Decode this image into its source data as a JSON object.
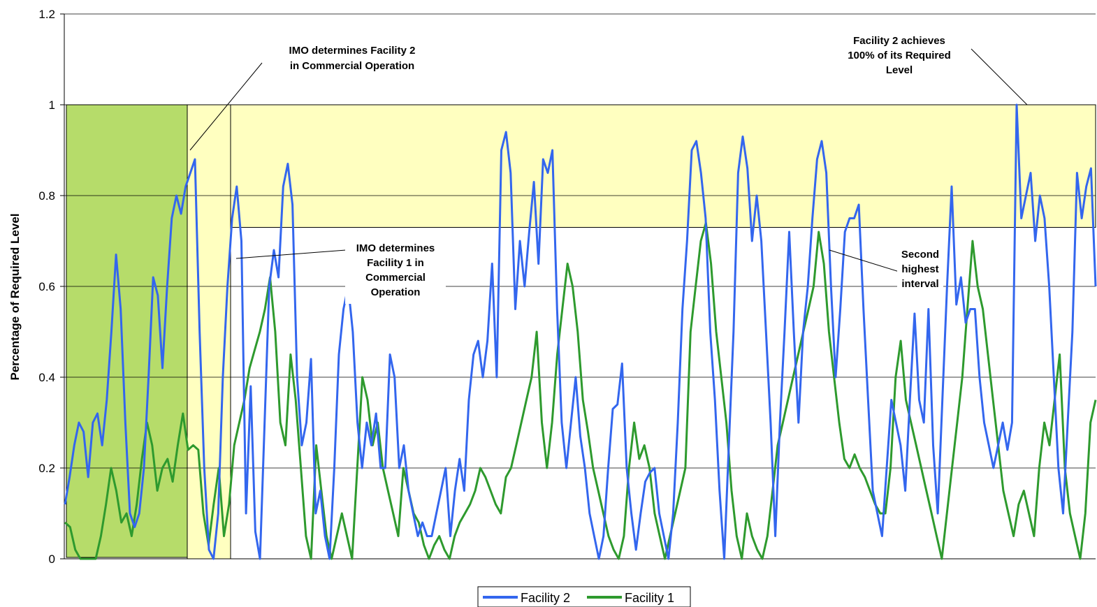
{
  "chart_data": {
    "type": "line",
    "title": "",
    "xlabel": "",
    "ylabel": "Percentage of Required Level",
    "ylim": [
      0,
      1.2
    ],
    "yticks": [
      "0",
      "0.2",
      "0.4",
      "0.6",
      "0.8",
      "1",
      "1.2"
    ],
    "grid": "horizontal",
    "legend_position": "bottom-center",
    "colors": {
      "facility2": "#3366ee",
      "facility1": "#2e9a2e",
      "yellow_band": "#ffffc0",
      "green_band": "#b6dc6a"
    },
    "shaded_regions": [
      {
        "name": "initial-green-region",
        "y_range": [
          0,
          1
        ]
      },
      {
        "name": "initial-yellow-region",
        "y_range": [
          0,
          1
        ]
      },
      {
        "name": "second-highest-band",
        "y_range": [
          0.73,
          1
        ]
      }
    ],
    "series": [
      {
        "name": "Facility 2",
        "color": "#3366ee",
        "values": [
          0.12,
          0.18,
          0.25,
          0.3,
          0.28,
          0.18,
          0.3,
          0.32,
          0.25,
          0.35,
          0.5,
          0.67,
          0.55,
          0.3,
          0.1,
          0.07,
          0.1,
          0.2,
          0.4,
          0.62,
          0.58,
          0.42,
          0.6,
          0.75,
          0.8,
          0.76,
          0.82,
          0.85,
          0.88,
          0.5,
          0.2,
          0.02,
          0,
          0.1,
          0.4,
          0.6,
          0.75,
          0.82,
          0.7,
          0.1,
          0.38,
          0.06,
          0,
          0.3,
          0.6,
          0.68,
          0.62,
          0.82,
          0.87,
          0.78,
          0.4,
          0.25,
          0.3,
          0.44,
          0.1,
          0.15,
          0.05,
          0,
          0.2,
          0.45,
          0.55,
          0.6,
          0.5,
          0.3,
          0.2,
          0.3,
          0.25,
          0.32,
          0.2,
          0.2,
          0.45,
          0.4,
          0.2,
          0.25,
          0.15,
          0.1,
          0.05,
          0.08,
          0.05,
          0.05,
          0.1,
          0.15,
          0.2,
          0.05,
          0.15,
          0.22,
          0.15,
          0.35,
          0.45,
          0.48,
          0.4,
          0.48,
          0.65,
          0.4,
          0.9,
          0.94,
          0.85,
          0.55,
          0.7,
          0.6,
          0.72,
          0.83,
          0.65,
          0.88,
          0.85,
          0.9,
          0.55,
          0.3,
          0.2,
          0.3,
          0.4,
          0.27,
          0.2,
          0.1,
          0.05,
          0,
          0.05,
          0.2,
          0.33,
          0.34,
          0.43,
          0.2,
          0.1,
          0.02,
          0.1,
          0.17,
          0.19,
          0.2,
          0.1,
          0.05,
          0,
          0.1,
          0.3,
          0.55,
          0.7,
          0.9,
          0.92,
          0.85,
          0.75,
          0.5,
          0.35,
          0.15,
          0,
          0.25,
          0.5,
          0.85,
          0.93,
          0.86,
          0.7,
          0.8,
          0.7,
          0.5,
          0.3,
          0.05,
          0.3,
          0.5,
          0.72,
          0.5,
          0.3,
          0.5,
          0.6,
          0.75,
          0.88,
          0.92,
          0.85,
          0.6,
          0.4,
          0.55,
          0.72,
          0.75,
          0.75,
          0.78,
          0.55,
          0.35,
          0.15,
          0.1,
          0.05,
          0.2,
          0.35,
          0.3,
          0.25,
          0.15,
          0.35,
          0.54,
          0.35,
          0.3,
          0.55,
          0.25,
          0.1,
          0.35,
          0.6,
          0.82,
          0.56,
          0.62,
          0.52,
          0.55,
          0.55,
          0.4,
          0.3,
          0.25,
          0.2,
          0.25,
          0.3,
          0.24,
          0.3,
          1,
          0.75,
          0.8,
          0.85,
          0.7,
          0.8,
          0.75,
          0.6,
          0.4,
          0.2,
          0.1,
          0.3,
          0.5,
          0.85,
          0.75,
          0.82,
          0.86,
          0.6
        ]
      },
      {
        "name": "Facility 1",
        "color": "#2e9a2e",
        "values": [
          0.08,
          0.07,
          0.02,
          0,
          0,
          0,
          0,
          0.05,
          0.12,
          0.2,
          0.15,
          0.08,
          0.1,
          0.05,
          0.12,
          0.22,
          0.3,
          0.25,
          0.15,
          0.2,
          0.22,
          0.17,
          0.25,
          0.32,
          0.24,
          0.25,
          0.24,
          0.1,
          0.03,
          0.12,
          0.2,
          0.05,
          0.12,
          0.25,
          0.3,
          0.35,
          0.42,
          0.46,
          0.5,
          0.55,
          0.62,
          0.5,
          0.3,
          0.25,
          0.45,
          0.35,
          0.2,
          0.05,
          0,
          0.25,
          0.15,
          0.05,
          0,
          0.05,
          0.1,
          0.05,
          0,
          0.2,
          0.4,
          0.35,
          0.25,
          0.3,
          0.2,
          0.15,
          0.1,
          0.05,
          0.2,
          0.15,
          0.1,
          0.08,
          0.03,
          0,
          0.03,
          0.05,
          0.02,
          0,
          0.05,
          0.08,
          0.1,
          0.12,
          0.15,
          0.2,
          0.18,
          0.15,
          0.12,
          0.1,
          0.18,
          0.2,
          0.25,
          0.3,
          0.35,
          0.4,
          0.5,
          0.3,
          0.2,
          0.3,
          0.45,
          0.55,
          0.65,
          0.6,
          0.5,
          0.35,
          0.28,
          0.2,
          0.15,
          0.1,
          0.05,
          0.02,
          0,
          0.05,
          0.2,
          0.3,
          0.22,
          0.25,
          0.2,
          0.1,
          0.05,
          0,
          0.05,
          0.1,
          0.15,
          0.2,
          0.5,
          0.6,
          0.7,
          0.74,
          0.65,
          0.5,
          0.4,
          0.3,
          0.15,
          0.05,
          0,
          0.1,
          0.05,
          0.02,
          0,
          0.05,
          0.15,
          0.25,
          0.3,
          0.35,
          0.4,
          0.45,
          0.5,
          0.55,
          0.6,
          0.72,
          0.65,
          0.5,
          0.4,
          0.3,
          0.22,
          0.2,
          0.23,
          0.2,
          0.18,
          0.15,
          0.12,
          0.1,
          0.1,
          0.2,
          0.4,
          0.48,
          0.35,
          0.3,
          0.25,
          0.2,
          0.15,
          0.1,
          0.05,
          0,
          0.1,
          0.2,
          0.3,
          0.4,
          0.55,
          0.7,
          0.6,
          0.55,
          0.45,
          0.35,
          0.25,
          0.15,
          0.1,
          0.05,
          0.12,
          0.15,
          0.1,
          0.05,
          0.2,
          0.3,
          0.25,
          0.35,
          0.45,
          0.2,
          0.1,
          0.05,
          0,
          0.1,
          0.3,
          0.35
        ]
      }
    ],
    "annotations": [
      {
        "name": "annot-facility2-commercial",
        "lines": [
          "IMO determines Facility 2",
          "in Commercial Operation"
        ]
      },
      {
        "name": "annot-facility1-commercial",
        "lines": [
          "IMO determines",
          "Facility 1 in",
          "Commercial",
          "Operation"
        ]
      },
      {
        "name": "annot-facility2-achieves",
        "lines": [
          "Facility 2 achieves",
          "100% of its Required",
          "Level"
        ]
      },
      {
        "name": "annot-second-highest",
        "lines": [
          "Second",
          "highest",
          "interval"
        ]
      }
    ]
  }
}
